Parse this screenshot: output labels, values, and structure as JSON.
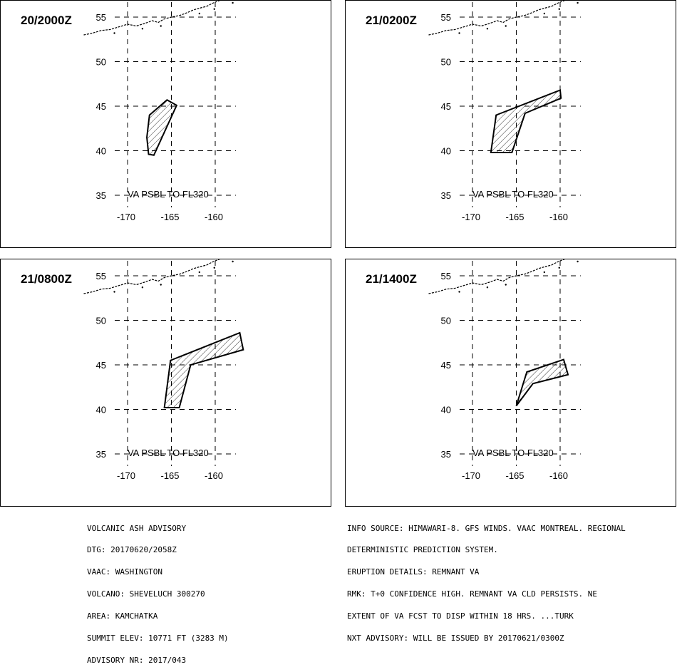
{
  "panels": [
    {
      "time": "20/2000Z",
      "ash_polygon": [
        [
          -167.5,
          44.0
        ],
        [
          -165.5,
          45.7
        ],
        [
          -164.4,
          45.1
        ],
        [
          -167.0,
          39.5
        ],
        [
          -167.6,
          39.6
        ],
        [
          -167.8,
          41.5
        ]
      ]
    },
    {
      "time": "21/0200Z",
      "ash_polygon": [
        [
          -167.3,
          44.0
        ],
        [
          -160.0,
          46.8
        ],
        [
          -159.9,
          45.9
        ],
        [
          -164.0,
          44.2
        ],
        [
          -165.5,
          39.8
        ],
        [
          -167.9,
          39.8
        ]
      ]
    },
    {
      "time": "21/0800Z",
      "ash_polygon": [
        [
          -165.1,
          45.5
        ],
        [
          -157.2,
          48.6
        ],
        [
          -156.8,
          46.7
        ],
        [
          -162.8,
          45.0
        ],
        [
          -164.1,
          40.2
        ],
        [
          -165.8,
          40.2
        ]
      ]
    },
    {
      "time": "21/1400Z",
      "ash_polygon": [
        [
          -163.8,
          44.2
        ],
        [
          -159.6,
          45.6
        ],
        [
          -159.1,
          43.9
        ],
        [
          -163.1,
          42.9
        ],
        [
          -165.0,
          40.4
        ]
      ]
    }
  ],
  "lat_ticks": [
    "55",
    "50",
    "45",
    "40",
    "35"
  ],
  "lon_ticks": [
    "-170",
    "-165",
    "-160"
  ],
  "va_text": "VA PSBL TO FL320",
  "advisory_left": [
    "VOLCANIC ASH ADVISORY",
    "DTG: 20170620/2058Z",
    "VAAC: WASHINGTON",
    "VOLCANO: SHEVELUCH 300270",
    "AREA: KAMCHATKA",
    "SUMMIT ELEV: 10771 FT (3283 M)",
    "ADVISORY NR: 2017/043"
  ],
  "advisory_right": [
    "INFO SOURCE: HIMAWARI-8. GFS WINDS. VAAC MONTREAL. REGIONAL",
    "DETERMINISTIC PREDICTION SYSTEM.",
    "ERUPTION DETAILS: REMNANT VA",
    "RMK: T+0 CONFIDENCE HIGH. REMNANT VA CLD PERSISTS. NE",
    "EXTENT OF VA FCST TO DISP WITHIN 18 HRS. ...TURK",
    "NXT ADVISORY: WILL BE ISSUED BY 20170621/0300Z"
  ]
}
